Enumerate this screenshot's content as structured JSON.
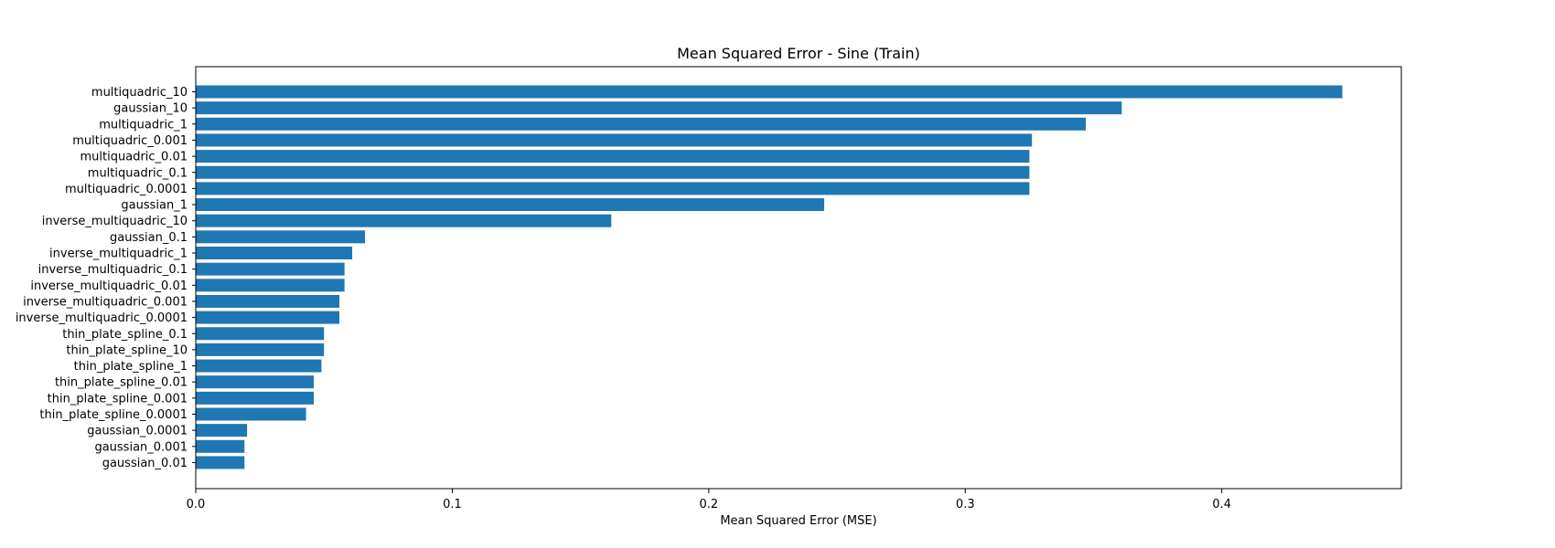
{
  "chart_data": {
    "type": "bar",
    "orientation": "horizontal",
    "title": "Mean Squared Error - Sine (Train)",
    "xlabel": "Mean Squared Error (MSE)",
    "ylabel": "",
    "xlim": [
      0,
      0.47
    ],
    "xticks": [
      0.0,
      0.1,
      0.2,
      0.3,
      0.4
    ],
    "xtick_labels": [
      "0.0",
      "0.1",
      "0.2",
      "0.3",
      "0.4"
    ],
    "grid": false,
    "bar_color": "#1f77b4",
    "categories": [
      "multiquadric_10",
      "gaussian_10",
      "multiquadric_1",
      "multiquadric_0.001",
      "multiquadric_0.01",
      "multiquadric_0.1",
      "multiquadric_0.0001",
      "gaussian_1",
      "inverse_multiquadric_10",
      "gaussian_0.1",
      "inverse_multiquadric_1",
      "inverse_multiquadric_0.1",
      "inverse_multiquadric_0.01",
      "inverse_multiquadric_0.001",
      "inverse_multiquadric_0.0001",
      "thin_plate_spline_0.1",
      "thin_plate_spline_10",
      "thin_plate_spline_1",
      "thin_plate_spline_0.01",
      "thin_plate_spline_0.001",
      "thin_plate_spline_0.0001",
      "gaussian_0.0001",
      "gaussian_0.001",
      "gaussian_0.01"
    ],
    "values": [
      0.447,
      0.361,
      0.347,
      0.326,
      0.325,
      0.325,
      0.325,
      0.245,
      0.162,
      0.066,
      0.061,
      0.058,
      0.058,
      0.056,
      0.056,
      0.05,
      0.05,
      0.049,
      0.046,
      0.046,
      0.043,
      0.02,
      0.019,
      0.019
    ]
  }
}
